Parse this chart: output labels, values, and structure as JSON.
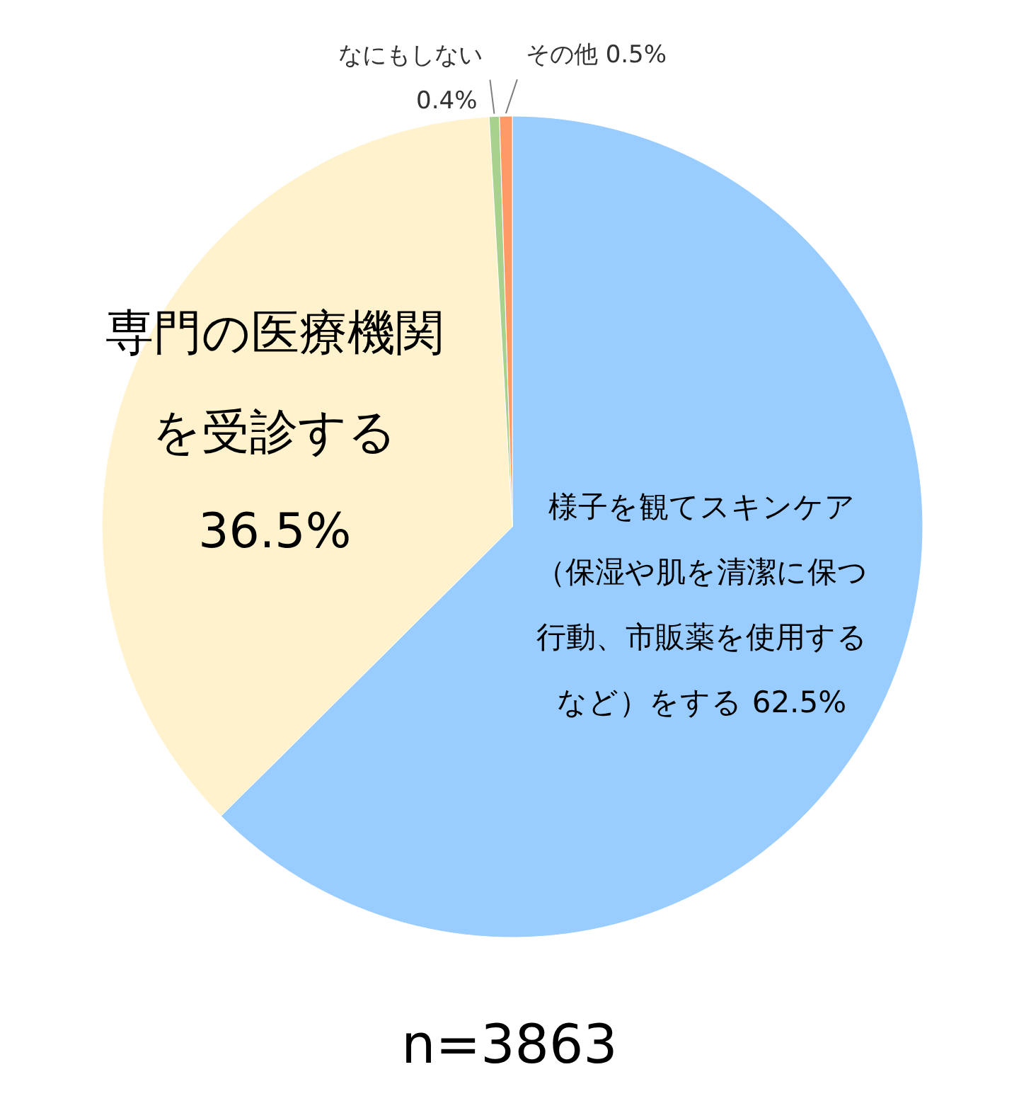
{
  "chart_data": {
    "type": "pie",
    "categories": [
      "様子を観てスキンケア（保湿や肌を清潔に保つ行動、市販薬を使用するなど）をする",
      "専門の医療機関を受診する",
      "なにもしない",
      "その他"
    ],
    "values": [
      62.5,
      36.5,
      0.4,
      0.5
    ],
    "value_labels": [
      "62.5%",
      "36.5%",
      "0.4%",
      "0.5%"
    ],
    "colors": [
      "#99ccff",
      "#fff2cc",
      "#a9d18e",
      "#ff9966"
    ],
    "annotations": [
      "n=3863"
    ]
  }
}
